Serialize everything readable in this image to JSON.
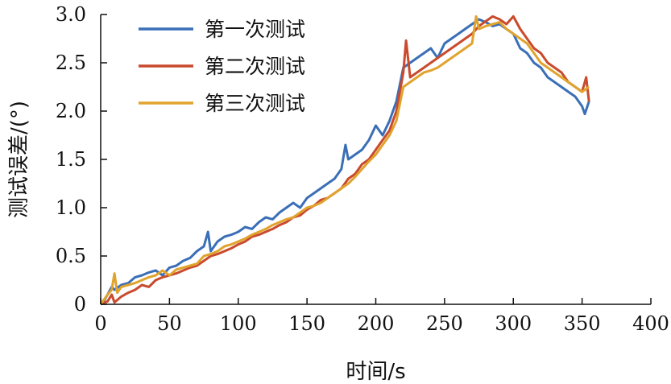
{
  "chart_data": {
    "type": "line",
    "xlabel": "时间/s",
    "ylabel": "测试误差/(°)",
    "xlim": [
      0,
      400
    ],
    "ylim": [
      0,
      3.0
    ],
    "x_ticks": [
      0,
      50,
      100,
      150,
      200,
      250,
      300,
      350,
      400
    ],
    "x_tick_labels": [
      "0",
      "50",
      "100",
      "150",
      "200",
      "250",
      "300",
      "350",
      "400"
    ],
    "y_ticks": [
      0,
      0.5,
      1.0,
      1.5,
      2.0,
      2.5,
      3.0
    ],
    "y_tick_labels": [
      "0",
      "0.5",
      "1.0",
      "1.5",
      "2.0",
      "2.5",
      "3.0"
    ],
    "grid": false,
    "legend_position": "top-left",
    "series": [
      {
        "name": "第一次测试",
        "color": "#3a6fb7",
        "x": [
          0,
          3,
          5,
          8,
          10,
          15,
          20,
          25,
          30,
          35,
          40,
          45,
          50,
          55,
          60,
          65,
          70,
          75,
          78,
          80,
          85,
          90,
          95,
          100,
          105,
          110,
          115,
          120,
          125,
          130,
          135,
          140,
          145,
          150,
          155,
          160,
          165,
          170,
          175,
          178,
          180,
          185,
          190,
          195,
          200,
          205,
          210,
          215,
          220,
          225,
          230,
          235,
          240,
          245,
          250,
          255,
          260,
          265,
          270,
          275,
          280,
          285,
          290,
          295,
          300,
          305,
          310,
          315,
          320,
          325,
          330,
          335,
          340,
          345,
          350,
          352,
          355
        ],
        "y": [
          0.0,
          0.05,
          0.1,
          0.18,
          0.15,
          0.2,
          0.22,
          0.28,
          0.3,
          0.33,
          0.35,
          0.3,
          0.38,
          0.4,
          0.45,
          0.48,
          0.55,
          0.6,
          0.75,
          0.55,
          0.65,
          0.7,
          0.72,
          0.75,
          0.8,
          0.78,
          0.85,
          0.9,
          0.88,
          0.95,
          1.0,
          1.05,
          1.0,
          1.1,
          1.15,
          1.2,
          1.25,
          1.3,
          1.4,
          1.65,
          1.5,
          1.55,
          1.6,
          1.7,
          1.85,
          1.75,
          1.9,
          2.1,
          2.45,
          2.5,
          2.55,
          2.6,
          2.65,
          2.55,
          2.7,
          2.75,
          2.8,
          2.85,
          2.9,
          2.95,
          2.92,
          2.88,
          2.9,
          2.85,
          2.8,
          2.65,
          2.6,
          2.5,
          2.45,
          2.35,
          2.3,
          2.25,
          2.2,
          2.15,
          2.05,
          1.97,
          2.1
        ]
      },
      {
        "name": "第二次测试",
        "color": "#c94a2c",
        "x": [
          0,
          5,
          8,
          10,
          15,
          20,
          25,
          30,
          35,
          40,
          45,
          50,
          55,
          60,
          65,
          70,
          75,
          80,
          85,
          90,
          95,
          100,
          105,
          110,
          115,
          120,
          125,
          130,
          135,
          140,
          145,
          150,
          155,
          160,
          165,
          170,
          175,
          180,
          185,
          190,
          195,
          200,
          205,
          210,
          215,
          220,
          222,
          225,
          230,
          235,
          240,
          245,
          250,
          255,
          260,
          265,
          270,
          275,
          280,
          285,
          290,
          295,
          300,
          305,
          310,
          315,
          320,
          325,
          330,
          335,
          340,
          345,
          350,
          353,
          355
        ],
        "y": [
          0.0,
          0.03,
          0.1,
          0.02,
          0.08,
          0.12,
          0.15,
          0.2,
          0.18,
          0.25,
          0.28,
          0.3,
          0.32,
          0.35,
          0.38,
          0.4,
          0.45,
          0.5,
          0.52,
          0.55,
          0.58,
          0.62,
          0.65,
          0.7,
          0.72,
          0.75,
          0.78,
          0.82,
          0.85,
          0.9,
          0.92,
          0.98,
          1.02,
          1.08,
          1.1,
          1.15,
          1.2,
          1.3,
          1.35,
          1.45,
          1.5,
          1.6,
          1.7,
          1.8,
          2.0,
          2.4,
          2.73,
          2.35,
          2.4,
          2.45,
          2.5,
          2.55,
          2.6,
          2.65,
          2.7,
          2.75,
          2.8,
          2.88,
          2.93,
          2.98,
          2.95,
          2.9,
          2.98,
          2.85,
          2.75,
          2.65,
          2.6,
          2.5,
          2.45,
          2.4,
          2.3,
          2.25,
          2.2,
          2.35,
          2.1
        ]
      },
      {
        "name": "第三次测试",
        "color": "#e0a32e",
        "x": [
          0,
          5,
          8,
          10,
          12,
          15,
          20,
          25,
          30,
          35,
          40,
          45,
          50,
          55,
          60,
          65,
          70,
          75,
          80,
          85,
          90,
          95,
          100,
          105,
          110,
          115,
          120,
          125,
          130,
          135,
          140,
          145,
          150,
          155,
          160,
          165,
          170,
          175,
          180,
          185,
          190,
          195,
          200,
          205,
          210,
          215,
          220,
          225,
          230,
          235,
          240,
          245,
          250,
          255,
          260,
          265,
          270,
          273,
          275,
          280,
          285,
          290,
          295,
          300,
          305,
          310,
          315,
          320,
          325,
          330,
          335,
          340,
          345,
          350,
          355
        ],
        "y": [
          0.0,
          0.1,
          0.15,
          0.32,
          0.12,
          0.18,
          0.2,
          0.22,
          0.25,
          0.28,
          0.3,
          0.35,
          0.3,
          0.36,
          0.38,
          0.4,
          0.42,
          0.5,
          0.52,
          0.55,
          0.6,
          0.62,
          0.65,
          0.68,
          0.72,
          0.75,
          0.78,
          0.82,
          0.85,
          0.88,
          0.9,
          0.95,
          1.0,
          1.02,
          1.05,
          1.1,
          1.15,
          1.2,
          1.25,
          1.32,
          1.4,
          1.48,
          1.55,
          1.65,
          1.75,
          1.9,
          2.25,
          2.3,
          2.35,
          2.4,
          2.42,
          2.45,
          2.5,
          2.55,
          2.6,
          2.65,
          2.7,
          2.98,
          2.85,
          2.88,
          2.9,
          2.92,
          2.85,
          2.8,
          2.75,
          2.7,
          2.6,
          2.5,
          2.45,
          2.4,
          2.35,
          2.3,
          2.25,
          2.2,
          2.25
        ]
      }
    ]
  }
}
